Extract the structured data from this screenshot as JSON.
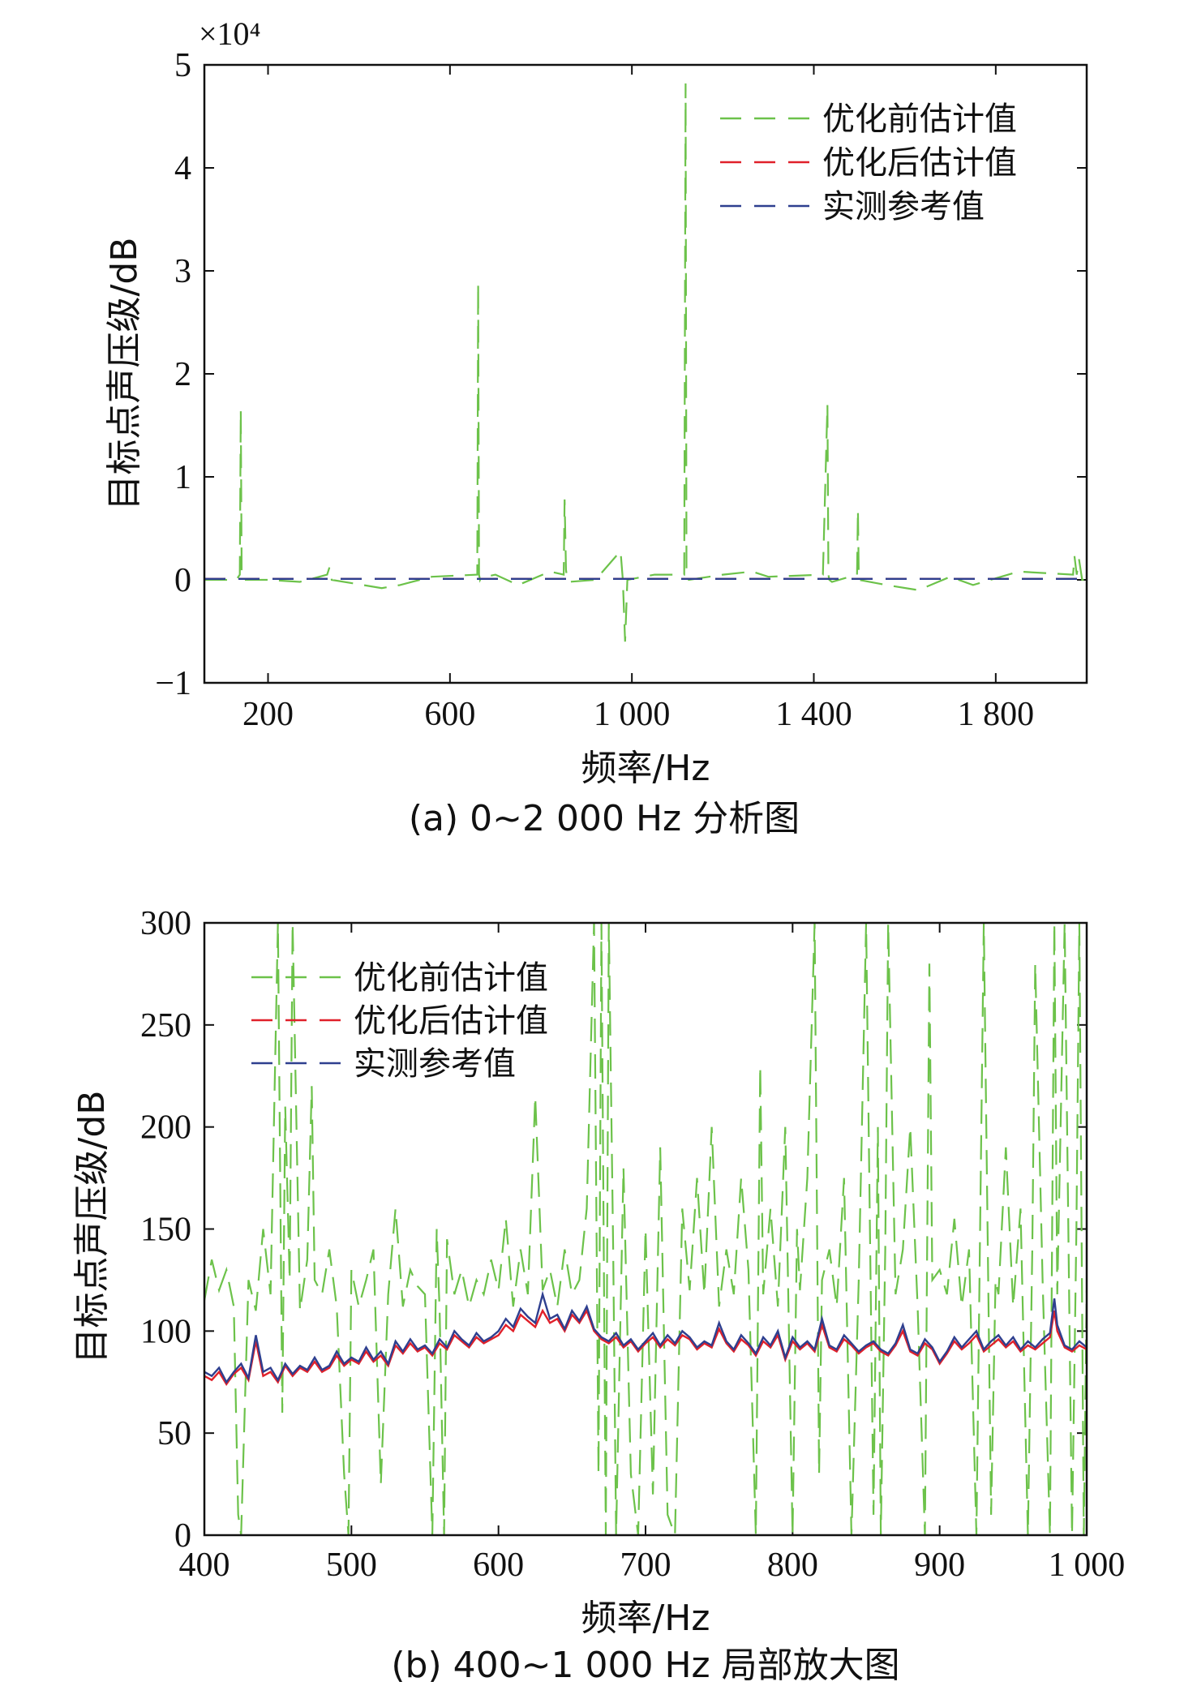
{
  "colors": {
    "before": "#6cc24a",
    "after": "#e0202a",
    "measured": "#2e3f8f",
    "axis": "#111111"
  },
  "chart_data": [
    {
      "type": "line",
      "caption": "(a) 0~2 000 Hz 分析图",
      "xlabel": "频率/Hz",
      "ylabel": "目标点声压级/dB",
      "multiplier": "×10⁴",
      "xlim": [
        60,
        2000
      ],
      "ylim": [
        -1,
        5
      ],
      "x_ticks": [
        200,
        600,
        1000,
        1400,
        1800
      ],
      "x_tick_labels": [
        "200",
        "600",
        "1 000",
        "1 400",
        "1 800"
      ],
      "y_ticks": [
        -1,
        0,
        1,
        2,
        3,
        4,
        5
      ],
      "y_tick_labels": [
        "−1",
        "0",
        "1",
        "2",
        "3",
        "4",
        "5"
      ],
      "legend": [
        "优化前估计值",
        "优化后估计值",
        "实测参考值"
      ],
      "legend_position": "top-right",
      "series": [
        {
          "name": "优化前估计值",
          "style": "dashed",
          "x": [
            60,
            130,
            138,
            140,
            142,
            146,
            200,
            270,
            330,
            335,
            340,
            450,
            490,
            560,
            660,
            662,
            664,
            666,
            668,
            700,
            750,
            820,
            850,
            852,
            855,
            858,
            862,
            920,
            975,
            980,
            985,
            990,
            1050,
            1115,
            1118,
            1120,
            1125,
            1200,
            1265,
            1300,
            1420,
            1430,
            1432,
            1434,
            1440,
            1495,
            1497,
            1499,
            1560,
            1630,
            1700,
            1750,
            1850,
            1970,
            1973,
            1978,
            1983,
            1990,
            2000
          ],
          "y": [
            0,
            0,
            0.05,
            1.65,
            0.05,
            0,
            0,
            -0.02,
            0.05,
            0.12,
            0,
            -0.08,
            -0.05,
            0.03,
            0.05,
            2.88,
            0.05,
            0,
            0.02,
            0.05,
            -0.05,
            0.08,
            0.05,
            0.78,
            0.1,
            0,
            -0.02,
            0,
            0.28,
            0,
            -0.6,
            0,
            0.05,
            0.05,
            4.82,
            0.05,
            0,
            0.05,
            0.08,
            0.03,
            0.05,
            1.7,
            0.05,
            0,
            -0.02,
            0.05,
            0.68,
            0,
            -0.05,
            -0.1,
            0.03,
            -0.05,
            0.08,
            0.05,
            0.23,
            0.05,
            0.2,
            0,
            0
          ]
        },
        {
          "name": "优化后估计值",
          "style": "dashed",
          "x": [
            60,
            2000
          ],
          "y": [
            0.0093,
            0.0093
          ]
        },
        {
          "name": "实测参考值",
          "style": "dashed",
          "x": [
            60,
            2000
          ],
          "y": [
            0.0092,
            0.0092
          ]
        }
      ]
    },
    {
      "type": "line",
      "caption": "(b) 400~1 000 Hz 局部放大图",
      "xlabel": "频率/Hz",
      "ylabel": "目标点声压级/dB",
      "xlim": [
        400,
        1000
      ],
      "ylim": [
        0,
        300
      ],
      "x_ticks": [
        400,
        500,
        600,
        700,
        800,
        900,
        1000
      ],
      "x_tick_labels": [
        "400",
        "500",
        "600",
        "700",
        "800",
        "900",
        "1 000"
      ],
      "y_ticks": [
        0,
        50,
        100,
        150,
        200,
        250,
        300
      ],
      "y_tick_labels": [
        "0",
        "50",
        "100",
        "150",
        "200",
        "250",
        "300"
      ],
      "legend": [
        "优化前估计值",
        "优化后估计值",
        "实测参考值"
      ],
      "legend_position": "top-left",
      "series": [
        {
          "name": "优化前估计值",
          "style": "dashed",
          "x": [
            400,
            405,
            410,
            415,
            420,
            423,
            425,
            430,
            435,
            440,
            445,
            450,
            453,
            455,
            458,
            460,
            465,
            470,
            473,
            475,
            480,
            485,
            490,
            495,
            498,
            500,
            505,
            510,
            515,
            520,
            525,
            530,
            535,
            540,
            545,
            550,
            555,
            558,
            560,
            563,
            565,
            570,
            575,
            580,
            585,
            590,
            595,
            600,
            605,
            610,
            615,
            620,
            625,
            630,
            635,
            640,
            645,
            650,
            655,
            660,
            665,
            668,
            670,
            673,
            675,
            678,
            680,
            685,
            690,
            695,
            700,
            705,
            710,
            715,
            720,
            725,
            730,
            735,
            740,
            745,
            750,
            755,
            760,
            765,
            770,
            775,
            778,
            780,
            785,
            790,
            795,
            800,
            803,
            805,
            810,
            815,
            818,
            820,
            825,
            830,
            835,
            840,
            845,
            850,
            855,
            858,
            860,
            863,
            865,
            870,
            875,
            880,
            885,
            890,
            893,
            895,
            900,
            905,
            910,
            915,
            920,
            925,
            930,
            935,
            938,
            940,
            945,
            950,
            955,
            960,
            963,
            965,
            970,
            975,
            978,
            980,
            985,
            990,
            993,
            995,
            998,
            1000
          ],
          "y": [
            115,
            135,
            120,
            130,
            112,
            10,
            0,
            125,
            110,
            150,
            118,
            300,
            60,
            210,
            125,
            300,
            110,
            135,
            220,
            125,
            118,
            140,
            112,
            30,
            0,
            130,
            112,
            125,
            140,
            25,
            118,
            160,
            112,
            130,
            122,
            118,
            0,
            150,
            110,
            0,
            145,
            118,
            130,
            112,
            125,
            118,
            135,
            120,
            155,
            112,
            140,
            118,
            215,
            120,
            130,
            112,
            140,
            118,
            125,
            160,
            300,
            30,
            300,
            0,
            300,
            140,
            0,
            180,
            30,
            0,
            150,
            20,
            190,
            10,
            0,
            160,
            120,
            175,
            118,
            200,
            112,
            140,
            118,
            175,
            130,
            0,
            230,
            118,
            160,
            112,
            200,
            0,
            150,
            120,
            175,
            300,
            30,
            125,
            140,
            112,
            175,
            0,
            125,
            300,
            10,
            200,
            0,
            140,
            300,
            118,
            140,
            200,
            112,
            0,
            280,
            125,
            130,
            118,
            155,
            112,
            140,
            0,
            300,
            10,
            125,
            118,
            190,
            112,
            160,
            0,
            140,
            280,
            125,
            0,
            300,
            118,
            300,
            0,
            150,
            300,
            0,
            120
          ]
        },
        {
          "name": "优化后估计值",
          "style": "dashed",
          "x": [
            400,
            405,
            410,
            415,
            420,
            425,
            430,
            435,
            440,
            445,
            450,
            455,
            460,
            465,
            470,
            475,
            480,
            485,
            490,
            495,
            500,
            505,
            510,
            515,
            520,
            525,
            530,
            535,
            540,
            545,
            550,
            555,
            560,
            565,
            570,
            575,
            580,
            585,
            590,
            595,
            600,
            605,
            610,
            615,
            620,
            625,
            630,
            635,
            640,
            645,
            650,
            655,
            660,
            665,
            670,
            675,
            680,
            685,
            690,
            695,
            700,
            705,
            710,
            715,
            720,
            725,
            730,
            735,
            740,
            745,
            750,
            755,
            760,
            765,
            770,
            775,
            780,
            785,
            790,
            795,
            800,
            805,
            810,
            815,
            820,
            825,
            830,
            835,
            840,
            845,
            850,
            855,
            860,
            865,
            870,
            875,
            880,
            885,
            890,
            895,
            900,
            905,
            910,
            915,
            920,
            925,
            930,
            935,
            940,
            945,
            950,
            955,
            960,
            965,
            970,
            975,
            978,
            980,
            985,
            990,
            995,
            1000
          ],
          "y": [
            78,
            76,
            80,
            74,
            79,
            82,
            76,
            95,
            78,
            80,
            75,
            83,
            78,
            82,
            80,
            85,
            80,
            82,
            88,
            83,
            86,
            84,
            90,
            85,
            88,
            83,
            93,
            89,
            94,
            90,
            92,
            88,
            94,
            91,
            98,
            95,
            92,
            97,
            94,
            96,
            98,
            103,
            100,
            108,
            105,
            102,
            110,
            104,
            106,
            100,
            108,
            104,
            110,
            100,
            96,
            94,
            97,
            92,
            95,
            90,
            94,
            97,
            92,
            96,
            93,
            98,
            96,
            91,
            94,
            92,
            101,
            94,
            90,
            96,
            93,
            88,
            95,
            92,
            98,
            86,
            95,
            91,
            94,
            90,
            103,
            92,
            90,
            96,
            93,
            89,
            92,
            94,
            90,
            88,
            93,
            100,
            90,
            88,
            94,
            91,
            84,
            89,
            95,
            91,
            94,
            98,
            90,
            93,
            96,
            92,
            95,
            90,
            93,
            91,
            94,
            97,
            110,
            100,
            92,
            90,
            93,
            91
          ]
        },
        {
          "name": "实测参考值",
          "style": "dashed",
          "x": [
            400,
            405,
            410,
            415,
            420,
            425,
            430,
            435,
            440,
            445,
            450,
            455,
            460,
            465,
            470,
            475,
            480,
            485,
            490,
            495,
            500,
            505,
            510,
            515,
            520,
            525,
            530,
            535,
            540,
            545,
            550,
            555,
            560,
            565,
            570,
            575,
            580,
            585,
            590,
            595,
            600,
            605,
            610,
            615,
            620,
            625,
            630,
            635,
            640,
            645,
            650,
            655,
            660,
            665,
            670,
            675,
            680,
            685,
            690,
            695,
            700,
            705,
            710,
            715,
            720,
            725,
            730,
            735,
            740,
            745,
            750,
            755,
            760,
            765,
            770,
            775,
            780,
            785,
            790,
            795,
            800,
            805,
            810,
            815,
            820,
            825,
            830,
            835,
            840,
            845,
            850,
            855,
            860,
            865,
            870,
            875,
            880,
            885,
            890,
            895,
            900,
            905,
            910,
            915,
            920,
            925,
            930,
            935,
            940,
            945,
            950,
            955,
            960,
            965,
            970,
            975,
            978,
            980,
            985,
            990,
            995,
            1000
          ],
          "y": [
            80,
            78,
            82,
            75,
            80,
            84,
            77,
            98,
            80,
            82,
            76,
            84,
            79,
            83,
            81,
            87,
            81,
            83,
            90,
            84,
            87,
            85,
            92,
            86,
            90,
            84,
            95,
            90,
            96,
            91,
            93,
            89,
            96,
            92,
            100,
            96,
            93,
            99,
            95,
            97,
            100,
            106,
            102,
            111,
            107,
            104,
            118,
            106,
            108,
            101,
            110,
            105,
            112,
            101,
            97,
            95,
            99,
            93,
            96,
            91,
            95,
            99,
            93,
            98,
            94,
            100,
            97,
            92,
            95,
            93,
            104,
            95,
            91,
            98,
            94,
            89,
            97,
            93,
            100,
            87,
            97,
            92,
            95,
            91,
            106,
            93,
            91,
            98,
            94,
            90,
            93,
            95,
            91,
            89,
            94,
            103,
            91,
            89,
            96,
            92,
            85,
            90,
            97,
            92,
            96,
            100,
            91,
            95,
            98,
            93,
            97,
            91,
            95,
            92,
            96,
            99,
            116,
            103,
            93,
            91,
            95,
            92
          ]
        }
      ]
    }
  ]
}
